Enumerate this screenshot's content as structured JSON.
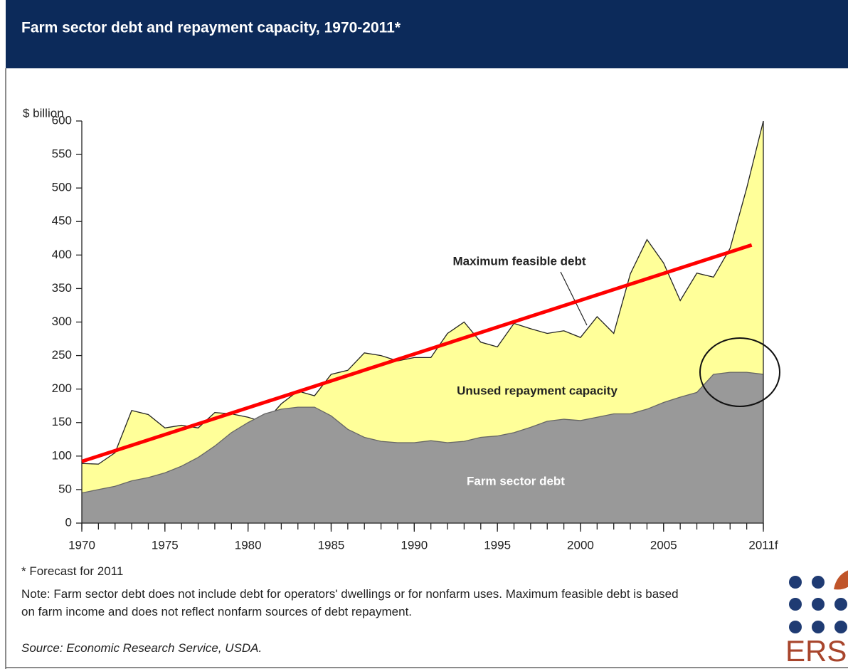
{
  "chart_data": {
    "type": "area",
    "title": "Farm sector debt and repayment capacity, 1970-2011*",
    "y_label": "$ billion",
    "x": [
      1970,
      1971,
      1972,
      1973,
      1974,
      1975,
      1976,
      1977,
      1978,
      1979,
      1980,
      1981,
      1982,
      1983,
      1984,
      1985,
      1986,
      1987,
      1988,
      1989,
      1990,
      1991,
      1992,
      1993,
      1994,
      1995,
      1996,
      1997,
      1998,
      1999,
      2000,
      2001,
      2002,
      2003,
      2004,
      2005,
      2006,
      2007,
      2008,
      2009,
      2010,
      2011
    ],
    "series": [
      {
        "name": "Farm sector debt",
        "color": "#999999",
        "values": [
          45,
          50,
          55,
          63,
          68,
          75,
          85,
          98,
          115,
          135,
          150,
          163,
          170,
          173,
          173,
          160,
          140,
          128,
          122,
          120,
          120,
          123,
          120,
          122,
          128,
          130,
          135,
          143,
          152,
          155,
          153,
          158,
          163,
          163,
          170,
          180,
          188,
          195,
          222,
          225,
          225,
          222
        ]
      },
      {
        "name": "Maximum feasible debt",
        "color": "#ffff99",
        "values": [
          89,
          88,
          105,
          168,
          162,
          142,
          146,
          142,
          165,
          163,
          158,
          150,
          178,
          197,
          190,
          222,
          228,
          254,
          250,
          242,
          247,
          247,
          283,
          300,
          270,
          263,
          298,
          290,
          283,
          287,
          277,
          308,
          283,
          372,
          423,
          388,
          332,
          373,
          367,
          410,
          500,
          600
        ]
      }
    ],
    "area_label": "Unused repayment capacity",
    "trend_line": {
      "color": "#ff0000",
      "x": [
        1970,
        2010.3
      ],
      "values": [
        92,
        415
      ]
    },
    "xlim": [
      1970,
      2011
    ],
    "ylim": [
      0,
      600
    ],
    "yticks": [
      0,
      50,
      100,
      150,
      200,
      250,
      300,
      350,
      400,
      450,
      500,
      550,
      600
    ],
    "xticks": [
      1970,
      1975,
      1980,
      1985,
      1990,
      1995,
      2000,
      2005,
      {
        "value": 2011,
        "label": "2011f"
      }
    ],
    "footnote": "* Forecast for 2011",
    "note": "Note: Farm sector debt does not include debt for operators' dwellings or for nonfarm uses. Maximum feasible debt is based on farm income and does not reflect nonfarm sources of debt repayment.",
    "source": "Source: Economic Research Service, USDA."
  },
  "logo": "ERS"
}
